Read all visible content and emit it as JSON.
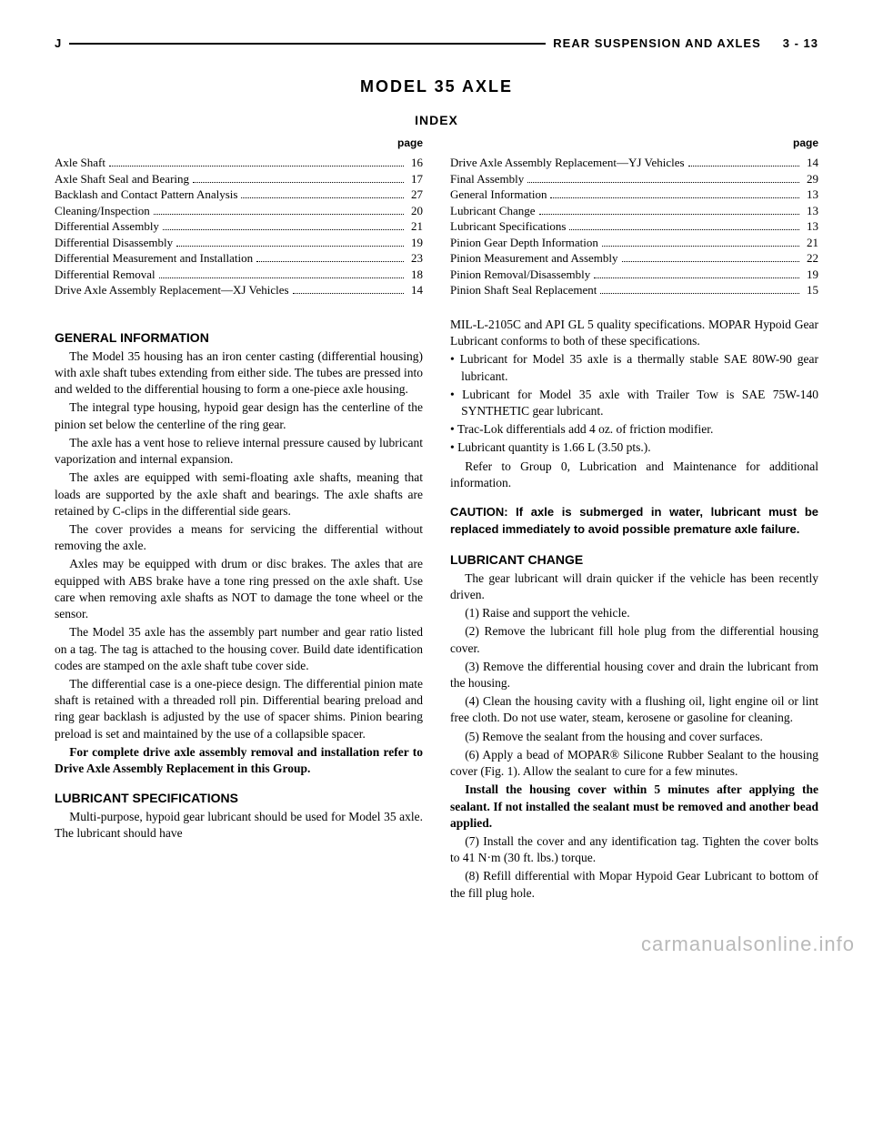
{
  "header": {
    "left": "J",
    "right_section": "REAR SUSPENSION AND AXLES",
    "right_page": "3 - 13"
  },
  "title": "MODEL 35 AXLE",
  "index_title": "INDEX",
  "page_label": "page",
  "index_left": [
    {
      "label": "Axle Shaft",
      "page": "16"
    },
    {
      "label": "Axle Shaft Seal and Bearing",
      "page": "17"
    },
    {
      "label": "Backlash and Contact Pattern Analysis",
      "page": "27"
    },
    {
      "label": "Cleaning/Inspection",
      "page": "20"
    },
    {
      "label": "Differential Assembly",
      "page": "21"
    },
    {
      "label": "Differential Disassembly",
      "page": "19"
    },
    {
      "label": "Differential Measurement and Installation",
      "page": "23"
    },
    {
      "label": "Differential Removal",
      "page": "18"
    },
    {
      "label": "Drive Axle Assembly Replacement—XJ Vehicles",
      "page": "14"
    }
  ],
  "index_right": [
    {
      "label": "Drive Axle Assembly Replacement—YJ Vehicles",
      "page": "14"
    },
    {
      "label": "Final Assembly",
      "page": "29"
    },
    {
      "label": "General Information",
      "page": "13"
    },
    {
      "label": "Lubricant Change",
      "page": "13"
    },
    {
      "label": "Lubricant Specifications",
      "page": "13"
    },
    {
      "label": "Pinion Gear Depth Information",
      "page": "21"
    },
    {
      "label": "Pinion Measurement and Assembly",
      "page": "22"
    },
    {
      "label": "Pinion Removal/Disassembly",
      "page": "19"
    },
    {
      "label": "Pinion Shaft Seal Replacement",
      "page": "15"
    }
  ],
  "left_col": {
    "h1": "GENERAL INFORMATION",
    "p1": "The Model 35 housing has an iron center casting (differential housing) with axle shaft tubes extending from either side. The tubes are pressed into and welded to the differential housing to form a one-piece axle housing.",
    "p2": "The integral type housing, hypoid gear design has the centerline of the pinion set below the centerline of the ring gear.",
    "p3": "The axle has a vent hose to relieve internal pressure caused by lubricant vaporization and internal expansion.",
    "p4": "The axles are equipped with semi-floating axle shafts, meaning that loads are supported by the axle shaft and bearings. The axle shafts are retained by C-clips in the differential side gears.",
    "p5": "The cover provides a means for servicing the differential without removing the axle.",
    "p6": "Axles may be equipped with drum or disc brakes. The axles that are equipped with ABS brake have a tone ring pressed on the axle shaft. Use care when removing axle shafts as NOT to damage the tone wheel or the sensor.",
    "p7": "The Model 35 axle has the assembly part number and gear ratio listed on a tag. The tag is attached to the housing cover. Build date identification codes are stamped on the axle shaft tube cover side.",
    "p8": "The differential case is a one-piece design. The differential pinion mate shaft is retained with a threaded roll pin. Differential bearing preload and ring gear backlash is adjusted by the use of spacer shims. Pinion bearing preload is set and maintained by the use of a collapsible spacer.",
    "p9": "For complete drive axle assembly removal and installation refer to Drive Axle Assembly Replacement in this Group.",
    "h2": "LUBRICANT SPECIFICATIONS",
    "p10": "Multi-purpose, hypoid gear lubricant should be used for Model 35 axle. The lubricant should have"
  },
  "right_col": {
    "p1": "MIL-L-2105C and API GL 5 quality specifications. MOPAR Hypoid Gear Lubricant conforms to both of these specifications.",
    "b1": "• Lubricant for Model 35 axle is a thermally stable SAE 80W-90 gear lubricant.",
    "b2": "• Lubricant for Model 35 axle with Trailer Tow is SAE 75W-140 SYNTHETIC gear lubricant.",
    "b3": "• Trac-Lok differentials add 4 oz. of friction modifier.",
    "b4": "• Lubricant quantity is 1.66 L (3.50 pts.).",
    "p2": "Refer to Group 0, Lubrication and Maintenance for additional information.",
    "caution": "CAUTION: If axle is submerged in water, lubricant must be replaced immediately to avoid possible premature axle failure.",
    "h1": "LUBRICANT CHANGE",
    "p3": "The gear lubricant will drain quicker if the vehicle has been recently driven.",
    "s1": "(1) Raise and support the vehicle.",
    "s2": "(2) Remove the lubricant fill hole plug from the differential housing cover.",
    "s3": "(3) Remove the differential housing cover and drain the lubricant from the housing.",
    "s4": "(4) Clean the housing cavity with a flushing oil, light engine oil or lint free cloth. Do not use water, steam, kerosene or gasoline for cleaning.",
    "s5": "(5) Remove the sealant from the housing and cover surfaces.",
    "s6a": "(6) Apply a bead of MOPAR® Silicone Rubber Sealant to the housing cover (Fig. 1). Allow the sealant to cure for a few minutes.",
    "s6b": "Install the housing cover within 5 minutes after applying the sealant. If not installed the sealant must be removed and another bead applied.",
    "s7": "(7) Install the cover and any identification tag. Tighten the cover bolts to 41 N·m (30 ft. lbs.) torque.",
    "s8": "(8) Refill differential with Mopar Hypoid Gear Lubricant to bottom of the fill plug hole."
  },
  "footer": "carmanualsonline.info"
}
